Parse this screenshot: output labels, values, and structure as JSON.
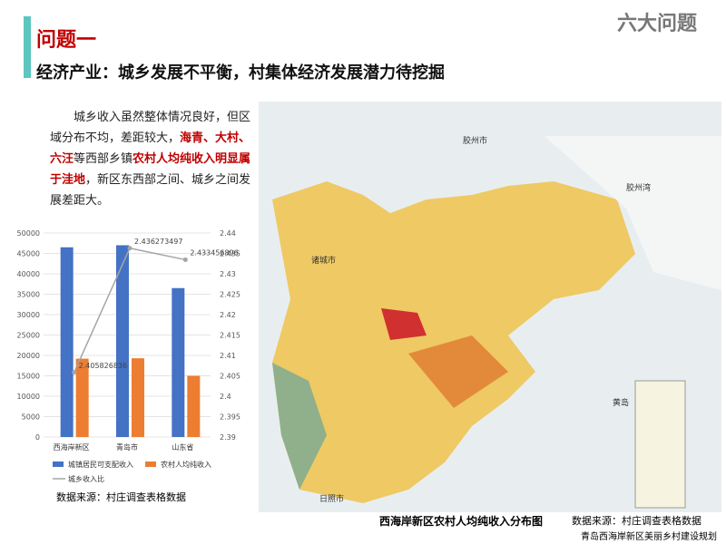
{
  "header": {
    "title": "问题一",
    "section": "六大问题",
    "subtitle": "经济产业：城乡发展不平衡，村集体经济发展潜力待挖掘"
  },
  "paragraph": [
    {
      "text": "城乡收入虽然整体情况良好，但区域分布不均，差距较大，",
      "color": "#222222"
    },
    {
      "text": "海青、大村、六汪",
      "color": "#c00000"
    },
    {
      "text": "等西部乡镇",
      "color": "#222222"
    },
    {
      "text": "农村人均纯收入明显属于洼地",
      "color": "#c00000"
    },
    {
      "text": "，新区东西部之间、城乡之间发展差距大。",
      "color": "#222222"
    }
  ],
  "chart": {
    "type": "bar",
    "categories": [
      "西海岸新区",
      "青岛市",
      "山东省"
    ],
    "series": [
      {
        "name": "城镇居民可支配收入",
        "color": "#4472c4",
        "values": [
          46500,
          47000,
          36500
        ]
      },
      {
        "name": "农村人均纯收入",
        "color": "#ed7d31",
        "values": [
          19200,
          19300,
          15000
        ]
      },
      {
        "name": "城乡收入比",
        "color": "#a5a5a5",
        "axis": "y2",
        "type": "line",
        "values": [
          2.405826836,
          2.436273497,
          2.433456896
        ]
      }
    ],
    "ylim": [
      0,
      50000
    ],
    "yticks": [
      0,
      5000,
      10000,
      15000,
      20000,
      25000,
      30000,
      35000,
      40000,
      45000,
      50000
    ],
    "y2lim": [
      2.39,
      2.44
    ],
    "y2ticks": [
      2.39,
      2.395,
      2.4,
      2.405,
      2.41,
      2.415,
      2.42,
      2.425,
      2.43,
      2.435,
      2.44
    ],
    "source": "数据来源：村庄调查表格数据"
  },
  "map": {
    "labels": [
      "胶州市",
      "诸城市",
      "黄岛",
      "日照市",
      "胶州湾"
    ],
    "caption": "西海岸新区农村人均纯收入分布图",
    "source": "数据来源：村庄调查表格数据"
  },
  "footer": "青岛西海岸新区美丽乡村建设规划"
}
